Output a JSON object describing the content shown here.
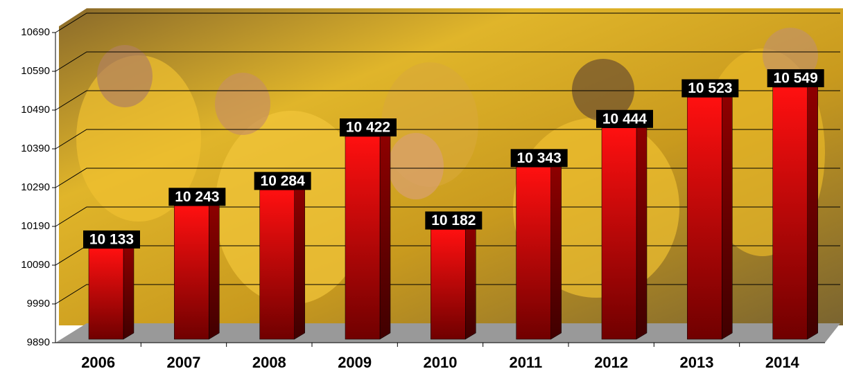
{
  "chart_data": {
    "type": "bar",
    "categories": [
      "2006",
      "2007",
      "2008",
      "2009",
      "2010",
      "2011",
      "2012",
      "2013",
      "2014"
    ],
    "values": [
      10133,
      10243,
      10284,
      10422,
      10182,
      10343,
      10444,
      10523,
      10549
    ],
    "value_labels": [
      "10 133",
      "10 243",
      "10 284",
      "10 422",
      "10 182",
      "10 343",
      "10 444",
      "10 523",
      "10 549"
    ],
    "color": "#e00000",
    "ylim": [
      9890,
      10690
    ],
    "yticks": [
      9890,
      9990,
      10090,
      10190,
      10290,
      10390,
      10490,
      10590,
      10690
    ],
    "grid": true
  }
}
